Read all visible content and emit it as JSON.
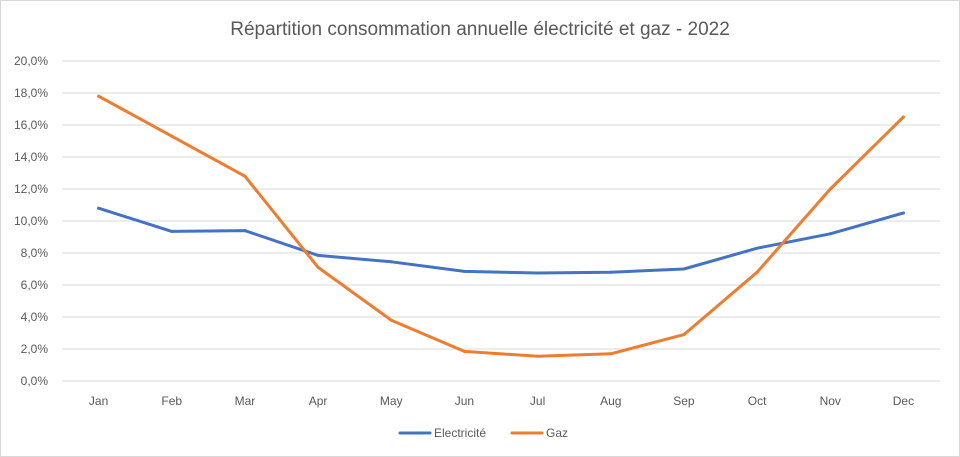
{
  "chart_data": {
    "type": "line",
    "title": "Répartition consommation annuelle électricité et gaz - 2022",
    "xlabel": "",
    "ylabel": "",
    "categories": [
      "Jan",
      "Feb",
      "Mar",
      "Apr",
      "May",
      "Jun",
      "Jul",
      "Aug",
      "Sep",
      "Oct",
      "Nov",
      "Dec"
    ],
    "ylim": [
      0,
      20
    ],
    "yticks": [
      0,
      2,
      4,
      6,
      8,
      10,
      12,
      14,
      16,
      18,
      20
    ],
    "ytick_labels": [
      "0,0%",
      "2,0%",
      "4,0%",
      "6,0%",
      "8,0%",
      "10,0%",
      "12,0%",
      "14,0%",
      "16,0%",
      "18,0%",
      "20,0%"
    ],
    "grid": true,
    "legend_position": "bottom",
    "series": [
      {
        "name": "Electricité",
        "color": "#4472C4",
        "values": [
          10.8,
          9.35,
          9.4,
          7.85,
          7.45,
          6.85,
          6.75,
          6.8,
          7.0,
          8.3,
          9.2,
          10.5
        ]
      },
      {
        "name": "Gaz",
        "color": "#ED7D31",
        "values": [
          17.8,
          15.3,
          12.8,
          7.1,
          3.8,
          1.85,
          1.55,
          1.7,
          2.9,
          6.8,
          12.0,
          16.5
        ]
      }
    ]
  }
}
